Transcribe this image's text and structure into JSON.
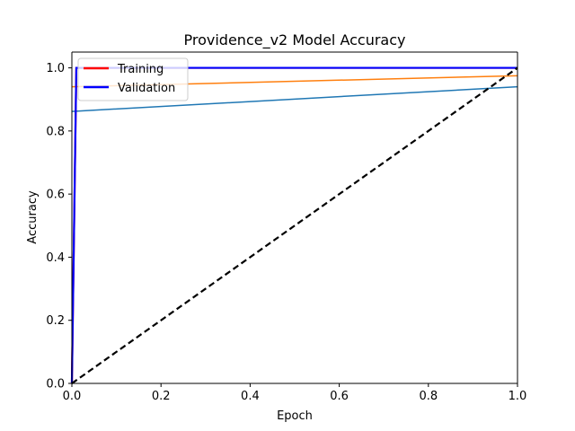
{
  "chart_data": {
    "type": "line",
    "title": "Providence_v2 Model Accuracy",
    "xlabel": "Epoch",
    "ylabel": "Accuracy",
    "xlim": [
      0,
      1
    ],
    "ylim": [
      0,
      1.05
    ],
    "xticks": [
      0.0,
      0.2,
      0.4,
      0.6,
      0.8,
      1.0
    ],
    "xtick_labels": [
      "0.0",
      "0.2",
      "0.4",
      "0.6",
      "0.8",
      "1.0"
    ],
    "yticks": [
      0.0,
      0.2,
      0.4,
      0.6,
      0.8,
      1.0
    ],
    "ytick_labels": [
      "0.0",
      "0.2",
      "0.4",
      "0.6",
      "0.8",
      "1.0"
    ],
    "grid": false,
    "legend": {
      "placement": "upper-left",
      "entries": [
        {
          "label": "Training",
          "color": "#ff0000"
        },
        {
          "label": "Validation",
          "color": "#0000ff"
        }
      ]
    },
    "series": [
      {
        "color": "#1f77b4",
        "style": "solid",
        "x": [
          0,
          1
        ],
        "y": [
          0.862,
          0.94
        ]
      },
      {
        "color": "#ff7f0e",
        "style": "solid",
        "x": [
          0,
          1
        ],
        "y": [
          0.94,
          0.975
        ]
      },
      {
        "name": "Training",
        "color": "#ff0000",
        "style": "solid",
        "x": [
          0,
          0.01,
          1
        ],
        "y": [
          0.0,
          1.0,
          1.0
        ]
      },
      {
        "name": "Validation",
        "color": "#0000ff",
        "style": "solid",
        "x": [
          0,
          0.01,
          1
        ],
        "y": [
          0.0,
          1.0,
          1.0
        ]
      },
      {
        "color": "#000000",
        "style": "dashed",
        "x": [
          0,
          1
        ],
        "y": [
          0,
          1
        ]
      }
    ]
  }
}
